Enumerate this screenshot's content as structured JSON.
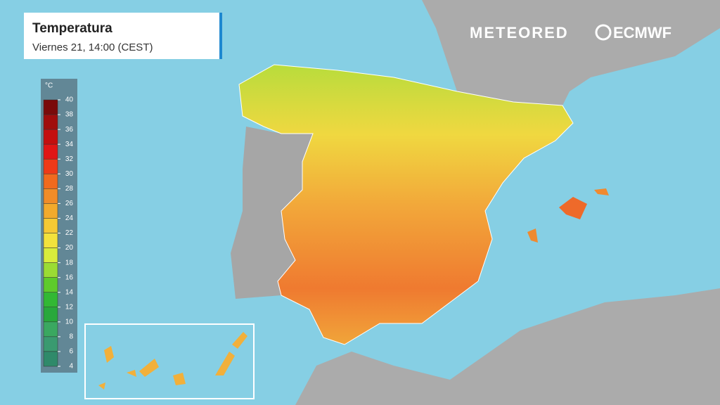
{
  "header": {
    "title": "Temperatura",
    "subtitle": "Viernes 21, 14:00 (CEST)"
  },
  "brand": {
    "left": "METEORED",
    "right": "ECMWF"
  },
  "legend": {
    "unit": "°C",
    "ticks": [
      40,
      38,
      36,
      34,
      32,
      30,
      28,
      26,
      24,
      22,
      20,
      18,
      16,
      14,
      12,
      10,
      8,
      6,
      4
    ],
    "colors": [
      "#7a0a0a",
      "#a00d0d",
      "#c40f0f",
      "#e01616",
      "#ee3a18",
      "#f16a1e",
      "#f08c28",
      "#f2aa2c",
      "#f5c934",
      "#f2e23c",
      "#d8ec3c",
      "#9bdc34",
      "#5ecb2c",
      "#32b834",
      "#28a83c",
      "#3aa860",
      "#3a9a70",
      "#2f8a6a"
    ]
  }
}
